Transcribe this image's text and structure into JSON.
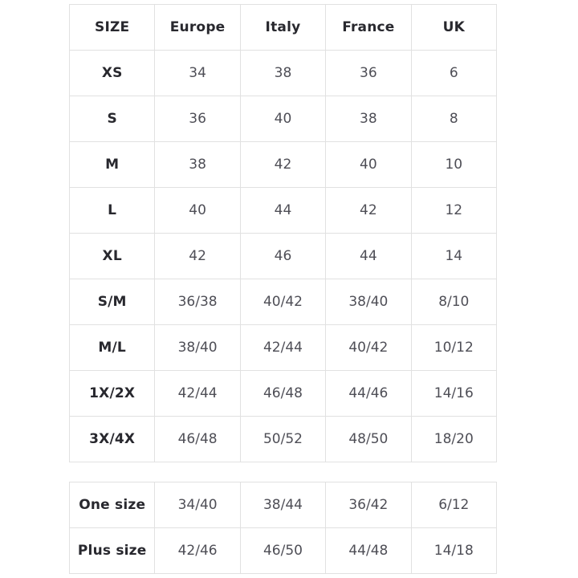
{
  "colors": {
    "background": "#ffffff",
    "border": "#e1e1e1",
    "header_text": "#28282e",
    "value_text": "#4e4e56"
  },
  "chart_data": [
    {
      "type": "table",
      "columns": [
        "SIZE",
        "Europe",
        "Italy",
        "France",
        "UK"
      ],
      "rows": [
        [
          "XS",
          "34",
          "38",
          "36",
          "6"
        ],
        [
          "S",
          "36",
          "40",
          "38",
          "8"
        ],
        [
          "M",
          "38",
          "42",
          "40",
          "10"
        ],
        [
          "L",
          "40",
          "44",
          "42",
          "12"
        ],
        [
          "XL",
          "42",
          "46",
          "44",
          "14"
        ],
        [
          "S/M",
          "36/38",
          "40/42",
          "38/40",
          "8/10"
        ],
        [
          "M/L",
          "38/40",
          "42/44",
          "40/42",
          "10/12"
        ],
        [
          "1X/2X",
          "42/44",
          "46/48",
          "44/46",
          "14/16"
        ],
        [
          "3X/4X",
          "46/48",
          "50/52",
          "48/50",
          "18/20"
        ]
      ]
    },
    {
      "type": "table",
      "columns": [],
      "rows": [
        [
          "One size",
          "34/40",
          "38/44",
          "36/42",
          "6/12"
        ],
        [
          "Plus size",
          "42/46",
          "46/50",
          "44/48",
          "14/18"
        ]
      ]
    }
  ]
}
